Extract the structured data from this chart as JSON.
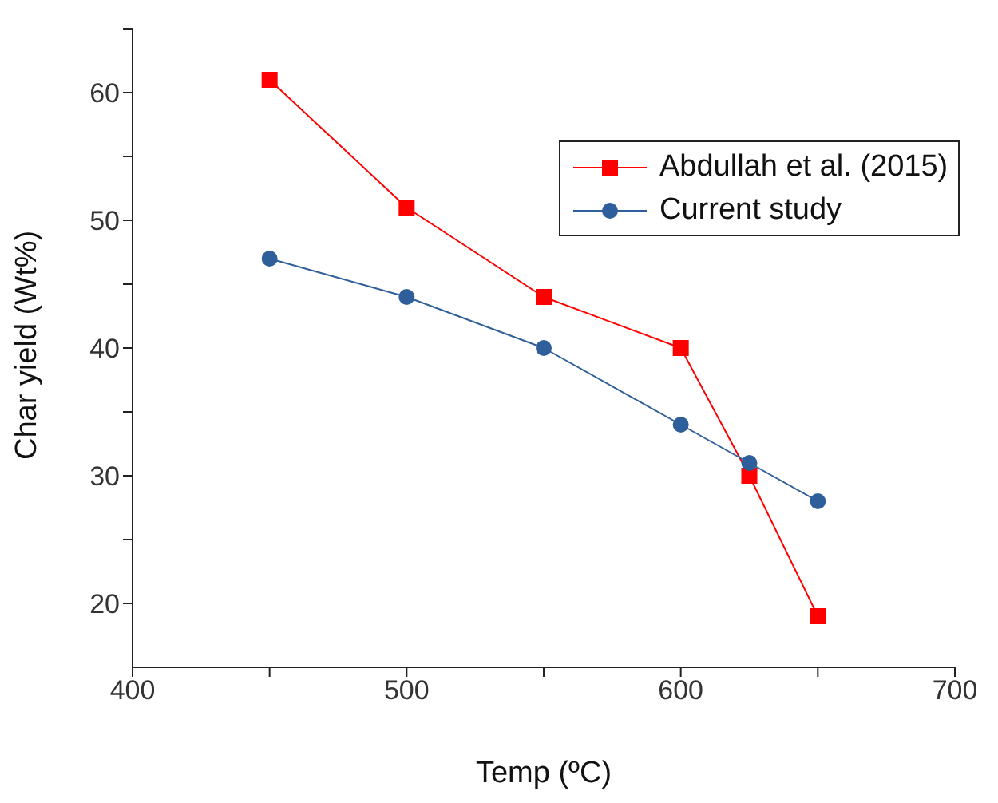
{
  "chart_data": {
    "type": "line",
    "xlabel": "Temp (ºC)",
    "ylabel": "Char yield (Wt%)",
    "x": [
      450,
      500,
      550,
      600,
      625,
      650
    ],
    "series": [
      {
        "name": "Abdullah et al. (2015)",
        "color": "#ff0000",
        "marker": "square",
        "values": [
          61,
          51,
          44,
          40,
          30,
          19
        ]
      },
      {
        "name": "Current study",
        "color": "#2f5f9a",
        "marker": "circle",
        "values": [
          47,
          44,
          40,
          34,
          31,
          28
        ]
      }
    ],
    "xlim": [
      400,
      700
    ],
    "xticks": [
      400,
      {
        "value": 450,
        "label": null
      },
      500,
      {
        "value": 550,
        "label": null
      },
      600,
      {
        "value": 650,
        "label": null
      },
      700
    ],
    "ylim": [
      15,
      65
    ],
    "yticks": [
      20,
      {
        "value": 25,
        "label": null
      },
      30,
      {
        "value": 35,
        "label": null
      },
      40,
      {
        "value": 45,
        "label": null
      },
      50,
      {
        "value": 55,
        "label": null
      },
      60,
      {
        "value": 65,
        "label": null
      }
    ],
    "grid": false,
    "legend": "top right",
    "line_style": "solid"
  }
}
